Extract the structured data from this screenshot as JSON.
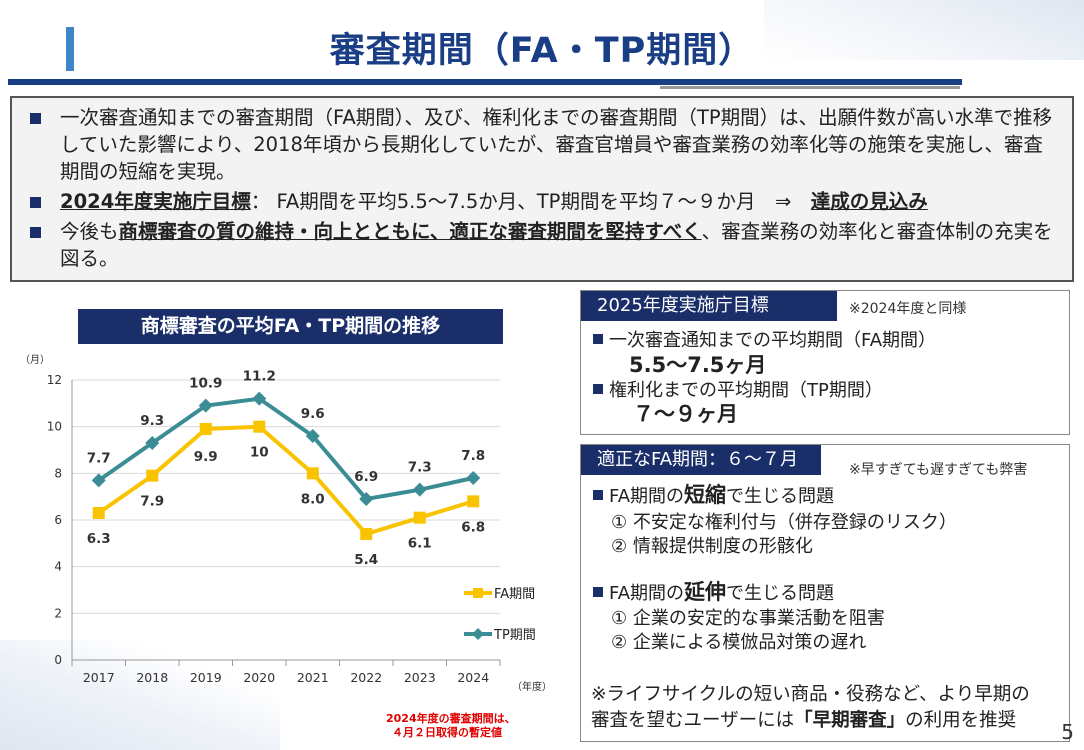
{
  "page": {
    "title": "審査期間（FA・TP期間）",
    "page_number": "5"
  },
  "summary": {
    "item1": "一次審査通知までの審査期間（FA期間）、及び、権利化までの審査期間（TP期間）は、出願件数が高い水準で推移していた影響により、2018年頃から長期化していたが、審査官増員や審査業務の効率化等の施策を実施し、審査期間の短縮を実現。",
    "item2_label": "2024年度実施庁目標",
    "item2_mid": "：  FA期間を平均5.5～7.5か月、TP期間を平均７～９か月　⇒　",
    "item2_result": "達成の見込み",
    "item3_pre": "今後も",
    "item3_emph": "商標審査の質の維持・向上とともに、適正な審査期間を堅持すべく",
    "item3_post": "、審査業務の効率化と審査体制の充実を図る。"
  },
  "chart_title": "商標審査の平均FA・TP期間の推移",
  "chart_note": [
    "2024年度の審査期間は、",
    "４月２日取得の暫定値"
  ],
  "chart_data": {
    "type": "line",
    "categories": [
      "2017",
      "2018",
      "2019",
      "2020",
      "2021",
      "2022",
      "2023",
      "2024"
    ],
    "series": [
      {
        "name": "FA期間",
        "values": [
          6.3,
          7.9,
          9.9,
          10,
          8.0,
          5.4,
          6.1,
          6.8
        ],
        "labels": [
          "6.3",
          "7.9",
          "9.9",
          "10",
          "8.0",
          "5.4",
          "6.1",
          "6.8"
        ],
        "color": "#f9c300"
      },
      {
        "name": "TP期間",
        "values": [
          7.7,
          9.3,
          10.9,
          11.2,
          9.6,
          6.9,
          7.3,
          7.8
        ],
        "labels": [
          "7.7",
          "9.3",
          "10.9",
          "11.2",
          "9.6",
          "6.9",
          "7.3",
          "7.8"
        ],
        "color": "#3a8c95"
      }
    ],
    "ylim": [
      0,
      12
    ],
    "yticks": [
      "0",
      "2",
      "4",
      "6",
      "8",
      "10",
      "12"
    ],
    "ylabel": "（月）",
    "xlabel": "（年度）",
    "grid": true,
    "legend_position": "right"
  },
  "target_2025": {
    "tag": "2025年度実施庁目標",
    "note": "※2024年度と同様",
    "line1": "一次審査通知までの平均期間（FA期間）",
    "value1": "5.5～7.5ヶ月",
    "line2": "権利化までの平均期間（TP期間）",
    "value2": "７～９ヶ月"
  },
  "appropriate": {
    "tag": "適正なFA期間：６～７月",
    "note": "※早すぎても遅すぎても弊害",
    "short_pre": "FA期間の",
    "short_emph": "短縮",
    "short_post": "で生じる問題",
    "short_items": [
      "① 不安定な権利付与（併存登録のリスク）",
      "② 情報提供制度の形骸化"
    ],
    "long_pre": "FA期間の",
    "long_emph": "延伸",
    "long_post": "で生じる問題",
    "long_items": [
      "① 企業の安定的な事業活動を阻害",
      "② 企業による模倣品対策の遅れ"
    ],
    "footer_line1": "※ライフサイクルの短い商品・役務など、より早期の",
    "footer_pre": "審査を望むユーザーには",
    "footer_emph": "「早期審査」",
    "footer_post": "の利用を推奨"
  }
}
